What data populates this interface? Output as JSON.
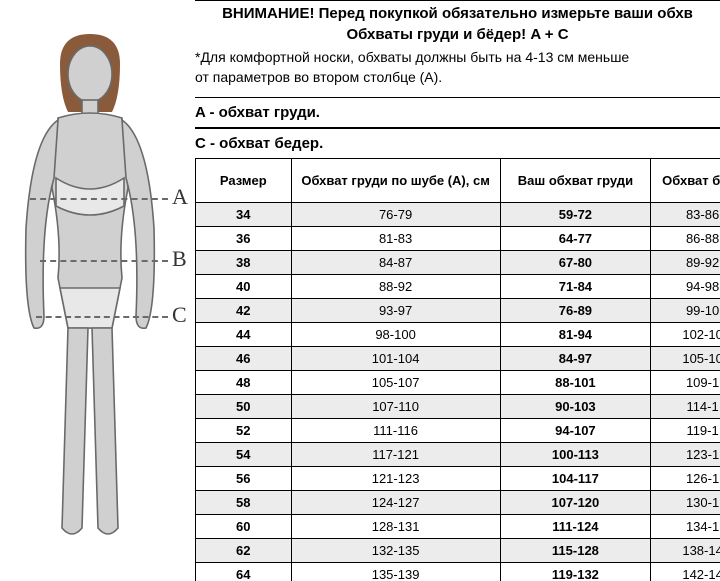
{
  "header": {
    "line1": "ВНИМАНИЕ! Перед покупкой обязательно измерьте ваши обхв",
    "line2": "Обхваты груди и бёдер! A + C",
    "note1": "*Для комфортной носки, обхваты должны быть на 4-13 см меньше",
    "note2": "от параметров во втором столбце (А).",
    "sectionA": "A - обхват груди.",
    "sectionC": "C - обхват бедер."
  },
  "figure": {
    "labelA": "A",
    "labelB": "B",
    "labelC": "C",
    "line_y": {
      "A": 198,
      "B": 260,
      "C": 316
    },
    "line_x1": {
      "A": 30,
      "B": 40,
      "C": 36
    },
    "colors": {
      "hair": "#8a5b3a",
      "skin": "#d0d0d0",
      "garment": "#e8e8e8",
      "outline": "#6a6a6a"
    }
  },
  "table": {
    "columns": [
      "Размер",
      "Обхват груди по шубе (А), см",
      "Ваш обхват груди",
      "Обхват беде"
    ],
    "rows": [
      [
        "34",
        "76-79",
        "59-72",
        "83-86"
      ],
      [
        "36",
        "81-83",
        "64-77",
        "86-88"
      ],
      [
        "38",
        "84-87",
        "67-80",
        "89-92"
      ],
      [
        "40",
        "88-92",
        "71-84",
        "94-98"
      ],
      [
        "42",
        "93-97",
        "76-89",
        "99-10"
      ],
      [
        "44",
        "98-100",
        "81-94",
        "102-10"
      ],
      [
        "46",
        "101-104",
        "84-97",
        "105-10"
      ],
      [
        "48",
        "105-107",
        "88-101",
        "109-1"
      ],
      [
        "50",
        "107-110",
        "90-103",
        "114-1"
      ],
      [
        "52",
        "111-116",
        "94-107",
        "119-1"
      ],
      [
        "54",
        "117-121",
        "100-113",
        "123-1"
      ],
      [
        "56",
        "121-123",
        "104-117",
        "126-1"
      ],
      [
        "58",
        "124-127",
        "107-120",
        "130-1"
      ],
      [
        "60",
        "128-131",
        "111-124",
        "134-1"
      ],
      [
        "62",
        "132-135",
        "115-128",
        "138-14"
      ],
      [
        "64",
        "135-139",
        "119-132",
        "142-14"
      ]
    ]
  }
}
